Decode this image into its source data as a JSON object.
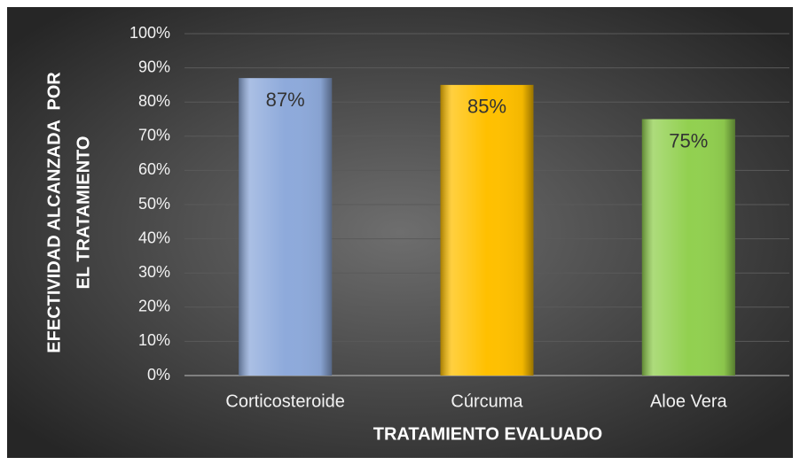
{
  "chart_data": {
    "type": "bar",
    "y_label": [
      "EFECTIVIDAD ALCANZADA  POR",
      "EL TRATAMIENTO"
    ],
    "x_label": "TRATAMIENTO EVALUADO",
    "categories": [
      "Corticosteroide",
      "Cúrcuma",
      "Aloe Vera"
    ],
    "values": [
      87,
      85,
      75
    ],
    "value_labels": [
      "87%",
      "85%",
      "75%"
    ],
    "colors": [
      "#8eaadb",
      "#ffc000",
      "#92d050"
    ],
    "ylim": [
      0,
      100
    ],
    "yticks": [
      {
        "value": 0,
        "label": "0%"
      },
      {
        "value": 10,
        "label": "10%"
      },
      {
        "value": 20,
        "label": "20%"
      },
      {
        "value": 30,
        "label": "30%"
      },
      {
        "value": 40,
        "label": "40%"
      },
      {
        "value": 50,
        "label": "50%"
      },
      {
        "value": 60,
        "label": "60%"
      },
      {
        "value": 70,
        "label": "70%"
      },
      {
        "value": 80,
        "label": "80%"
      },
      {
        "value": 90,
        "label": "90%"
      },
      {
        "value": 100,
        "label": "100%"
      }
    ],
    "grid": true
  }
}
